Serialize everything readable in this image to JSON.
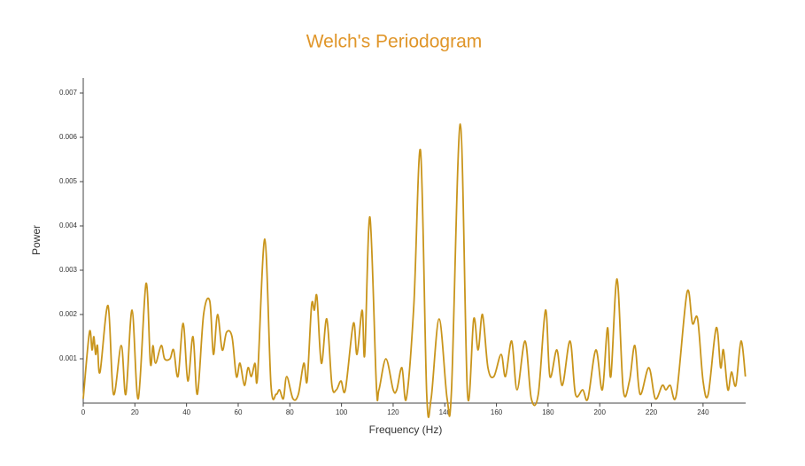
{
  "chart_data": {
    "type": "line",
    "title": "Welch's Periodogram",
    "x_label": "Frequency (Hz)",
    "y_label": "Power",
    "xlim": [
      0,
      256.5
    ],
    "ylim": [
      0,
      0.00734
    ],
    "xticks": [
      0,
      20,
      40,
      60,
      80,
      100,
      120,
      140,
      160,
      180,
      200,
      220,
      240
    ],
    "yticks": [
      0.001,
      0.002,
      0.003,
      0.004,
      0.005,
      0.006,
      0.007
    ],
    "series": [
      {
        "color": "#c9951c",
        "x": [
          0,
          2.4,
          3.4,
          4.1,
          4.8,
          5.5,
          6.5,
          9.6,
          11.7,
          14.7,
          16.5,
          18.9,
          21.3,
          24.3,
          26,
          27,
          28,
          30.2,
          31.5,
          33.6,
          35,
          36.7,
          38.7,
          40.5,
          42.5,
          44.2,
          46.6,
          49,
          50.4,
          52,
          53.8,
          55.5,
          57.6,
          59.3,
          60.7,
          62.4,
          63.8,
          65.1,
          66.5,
          67.5,
          70.3,
          72.7,
          74.7,
          76,
          77.5,
          78.8,
          81.2,
          83.3,
          85.4,
          86.7,
          88.4,
          89.5,
          90.5,
          92.2,
          94.3,
          96.3,
          98,
          99.8,
          101.5,
          104.6,
          106,
          108,
          109,
          111,
          113.5,
          114.5,
          117.2,
          120,
          121.4,
          123.4,
          125.1,
          128,
          130.6,
          133,
          134.7,
          137.8,
          140.9,
          142.6,
          146,
          148.8,
          151.2,
          152.9,
          154.6,
          156.7,
          159,
          161.8,
          163.5,
          165.9,
          168,
          171.1,
          173.5,
          176.2,
          179,
          180.7,
          183.4,
          185.5,
          188.5,
          190.6,
          193.4,
          195.4,
          198.5,
          201,
          203,
          204.3,
          206.7,
          209.1,
          211.5,
          213.6,
          215.6,
          219,
          221.5,
          224.2,
          225.6,
          227.3,
          229.7,
          233.8,
          235.9,
          237.9,
          240,
          242,
          245.1,
          246.8,
          247.9,
          249.6,
          251,
          252.7,
          254.7,
          256.4
        ],
        "values": [
          0.0001,
          0.0016,
          0.0012,
          0.0015,
          0.0011,
          0.0013,
          0.0007,
          0.0022,
          0.0002,
          0.0013,
          0.0002,
          0.0021,
          0.0001,
          0.0027,
          0.0009,
          0.0013,
          0.0009,
          0.0013,
          0.001,
          0.001,
          0.0012,
          0.0006,
          0.0018,
          0.0005,
          0.0015,
          0.0002,
          0.002,
          0.0023,
          0.0011,
          0.002,
          0.0012,
          0.0016,
          0.0015,
          0.0006,
          0.0009,
          0.0004,
          0.0008,
          0.0006,
          0.0009,
          0.0006,
          0.0037,
          0.0004,
          0.0002,
          0.0003,
          0.0001,
          0.0006,
          0.0001,
          0.0002,
          0.0009,
          0.0005,
          0.0022,
          0.0021,
          0.0024,
          0.0009,
          0.0019,
          0.0004,
          0.0003,
          0.0005,
          0.0003,
          0.0018,
          0.0011,
          0.0021,
          0.0011,
          0.0042,
          0.0004,
          0.0003,
          0.001,
          0.0003,
          0.0003,
          0.0008,
          0.0001,
          0.0022,
          0.0057,
          0.0002,
          0.0001,
          0.0019,
          0.0001,
          0.0003,
          0.0063,
          0.0002,
          0.0019,
          0.0012,
          0.002,
          0.0008,
          0.0006,
          0.0011,
          0.0006,
          0.0014,
          0.0003,
          0.0014,
          0.0001,
          0.0002,
          0.0021,
          0.0006,
          0.0012,
          0.0004,
          0.0014,
          0.0002,
          0.0003,
          0.0001,
          0.0012,
          0.0003,
          0.0017,
          0.0006,
          0.0028,
          0.0003,
          0.0005,
          0.0013,
          0.0002,
          0.0008,
          0.0001,
          0.0004,
          0.0003,
          0.0004,
          0.0002,
          0.0025,
          0.0018,
          0.0019,
          0.0005,
          0.0002,
          0.0017,
          0.0008,
          0.0012,
          0.0003,
          0.0007,
          0.0004,
          0.0014,
          0.0006
        ]
      }
    ]
  }
}
